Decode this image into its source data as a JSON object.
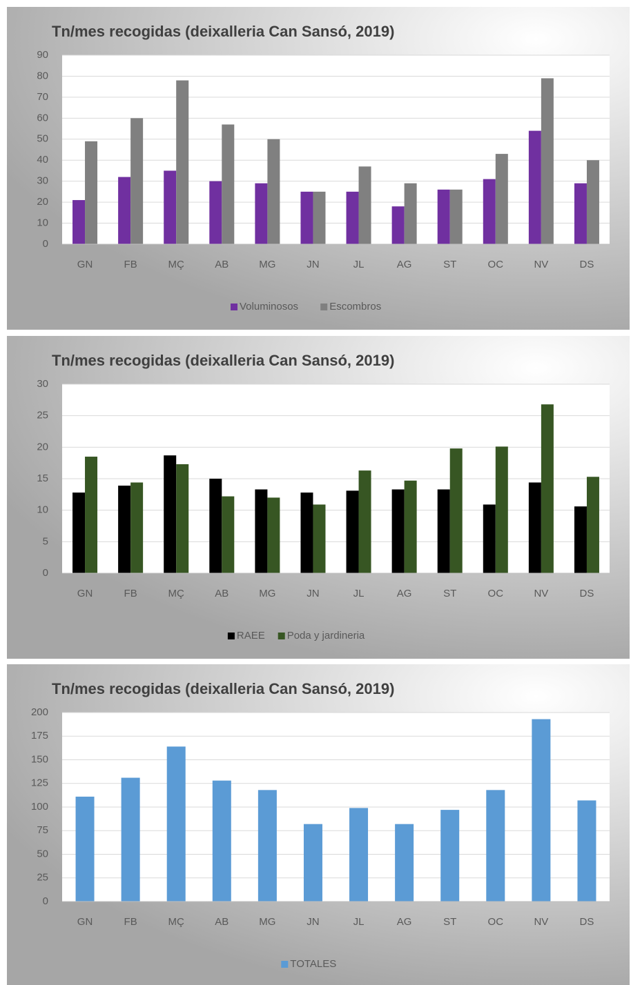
{
  "chart_data": [
    {
      "type": "bar",
      "title": "Tn/mes recogidas (deixalleria Can Sansó, 2019)",
      "categories": [
        "GN",
        "FB",
        "MÇ",
        "AB",
        "MG",
        "JN",
        "JL",
        "AG",
        "ST",
        "OC",
        "NV",
        "DS"
      ],
      "series": [
        {
          "name": "Voluminosos",
          "color": "#7030a0",
          "values": [
            21,
            32,
            35,
            30,
            29,
            25,
            25,
            18,
            26,
            31,
            54,
            29
          ]
        },
        {
          "name": "Escombros",
          "color": "#808080",
          "values": [
            49,
            60,
            78,
            57,
            50,
            25,
            37,
            29,
            26,
            43,
            79,
            40
          ]
        }
      ],
      "ylim": [
        0,
        90
      ],
      "yticks": [
        0,
        10,
        20,
        30,
        40,
        50,
        60,
        70,
        80,
        90
      ],
      "grid": true,
      "legend": "bottom"
    },
    {
      "type": "bar",
      "title": "Tn/mes recogidas (deixalleria Can Sansó, 2019)",
      "categories": [
        "GN",
        "FB",
        "MÇ",
        "AB",
        "MG",
        "JN",
        "JL",
        "AG",
        "ST",
        "OC",
        "NV",
        "DS"
      ],
      "series": [
        {
          "name": "RAEE",
          "color": "#000000",
          "values": [
            12.8,
            13.9,
            18.7,
            15,
            13.3,
            12.8,
            13.1,
            13.3,
            13.3,
            10.9,
            14.4,
            10.6
          ]
        },
        {
          "name": "Poda y jardineria",
          "color": "#375623",
          "values": [
            18.5,
            14.4,
            17.3,
            12.2,
            12,
            10.9,
            16.3,
            14.7,
            19.8,
            20.1,
            26.8,
            15.3
          ]
        }
      ],
      "ylim": [
        0,
        30
      ],
      "yticks": [
        0,
        5,
        10,
        15,
        20,
        25,
        30
      ],
      "grid": true,
      "legend": "bottom"
    },
    {
      "type": "bar",
      "title": "Tn/mes recogidas (deixalleria Can Sansó, 2019)",
      "categories": [
        "GN",
        "FB",
        "MÇ",
        "AB",
        "MG",
        "JN",
        "JL",
        "AG",
        "ST",
        "OC",
        "NV",
        "DS"
      ],
      "series": [
        {
          "name": "TOTALES",
          "color": "#5b9bd5",
          "values": [
            111,
            131,
            164,
            128,
            118,
            82,
            99,
            82,
            97,
            118,
            193,
            107
          ]
        }
      ],
      "ylim": [
        0,
        200
      ],
      "yticks": [
        0,
        25,
        50,
        75,
        100,
        125,
        150,
        175,
        200
      ],
      "grid": true,
      "legend": "bottom"
    }
  ]
}
